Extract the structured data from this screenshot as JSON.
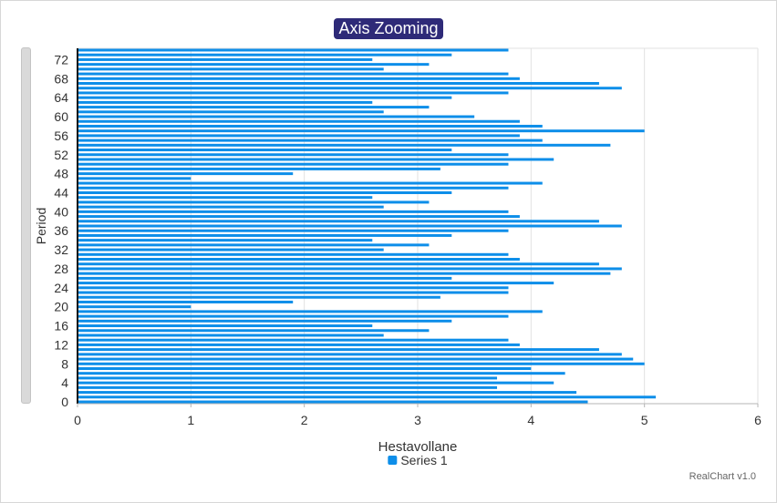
{
  "chart_data": {
    "type": "bar",
    "orientation": "horizontal",
    "title": "Axis Zooming",
    "xlabel": "Hestavollane",
    "ylabel": "Period",
    "xlim": [
      0,
      6
    ],
    "x_ticks": [
      "0",
      "1",
      "2",
      "3",
      "4",
      "5",
      "6"
    ],
    "y_ticks": [
      "0",
      "4",
      "8",
      "12",
      "16",
      "20",
      "24",
      "28",
      "32",
      "36",
      "40",
      "44",
      "48",
      "52",
      "56",
      "60",
      "64",
      "68",
      "72"
    ],
    "categories": [
      0,
      1,
      2,
      3,
      4,
      5,
      6,
      7,
      8,
      9,
      10,
      11,
      12,
      13,
      14,
      15,
      16,
      17,
      18,
      19,
      20,
      21,
      22,
      23,
      24,
      25,
      26,
      27,
      28,
      29,
      30,
      31,
      32,
      33,
      34,
      35,
      36,
      37,
      38,
      39,
      40,
      41,
      42,
      43,
      44,
      45,
      46,
      47,
      48,
      49,
      50,
      51,
      52,
      53,
      54,
      55,
      56,
      57,
      58,
      59,
      60,
      61,
      62,
      63,
      64,
      65,
      66,
      67,
      68,
      69,
      70,
      71,
      72,
      73,
      74
    ],
    "series": [
      {
        "name": "Series 1",
        "color": "#0d8ee9",
        "values": [
          4.5,
          5.1,
          4.4,
          3.7,
          4.2,
          3.7,
          4.3,
          4.0,
          5.0,
          4.9,
          4.8,
          4.6,
          3.9,
          3.8,
          2.7,
          3.1,
          2.6,
          3.3,
          3.8,
          4.1,
          1.0,
          1.9,
          3.2,
          3.8,
          3.8,
          4.2,
          3.3,
          4.7,
          4.8,
          4.6,
          3.9,
          3.8,
          2.7,
          3.1,
          2.6,
          3.3,
          3.8,
          4.8,
          4.6,
          3.9,
          3.8,
          2.7,
          3.1,
          2.6,
          3.3,
          3.8,
          4.1,
          1.0,
          1.9,
          3.2,
          3.8,
          4.2,
          3.8,
          3.3,
          4.7,
          4.1,
          3.9,
          5.0,
          4.1,
          3.9,
          3.5,
          2.7,
          3.1,
          2.6,
          3.3,
          3.8,
          4.8,
          4.6,
          3.9,
          3.8,
          2.7,
          3.1,
          2.6,
          3.3,
          3.8
        ]
      }
    ],
    "grid": true,
    "legend_position": "bottom"
  },
  "credit": "RealChart v1.0"
}
